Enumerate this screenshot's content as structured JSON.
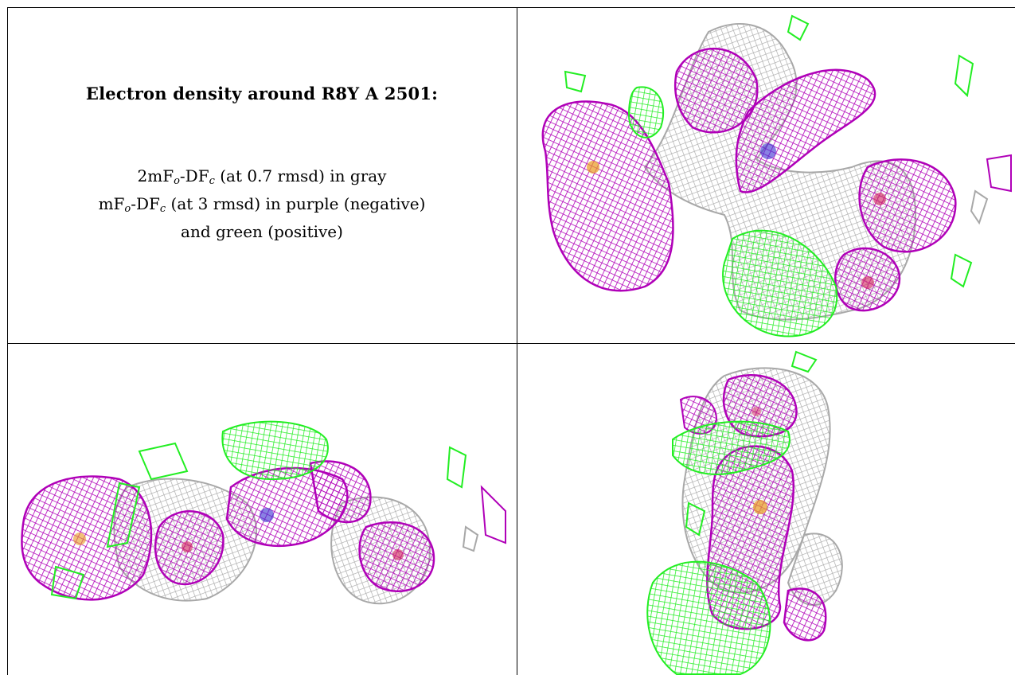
{
  "caption": {
    "title": "Electron density around R8Y A 2501:",
    "line1": {
      "prefix": "2mF",
      "sub1": "o",
      "mid": "-DF",
      "sub2": "c",
      "suffix": " (at 0.7 rmsd) in gray"
    },
    "line2": {
      "prefix": "mF",
      "sub1": "o",
      "mid": "-DF",
      "sub2": "c",
      "suffix": " (at 3 rmsd) in purple (negative)"
    },
    "line3": "and green (positive)"
  },
  "colors": {
    "gray": "#a8a8a8",
    "purple": "#b000b8",
    "green": "#22ee22",
    "blue": "#3b2fd0",
    "orange": "#e89a20",
    "red": "#d0205a"
  }
}
